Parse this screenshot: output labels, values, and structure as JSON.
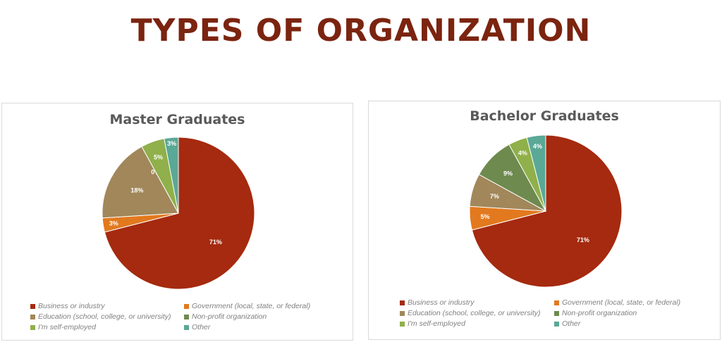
{
  "page": {
    "title": "TYPES OF ORGANIZATION"
  },
  "colors": {
    "Business or industry": "#a52a0f",
    "Government (local, state, or federal)": "#e2791e",
    "Education (school, college, or university)": "#a1875a",
    "Non-profit organization": "#6e8a4e",
    "I'm self-employed": "#8fb04a",
    "Other": "#5aa896"
  },
  "chart_data": [
    {
      "type": "pie",
      "title": "Master Graduates",
      "categories": [
        "Business or industry",
        "Government (local, state, or federal)",
        "Education (school, college, or university)",
        "Non-profit organization",
        "I'm self-employed",
        "Other"
      ],
      "values": [
        71,
        3,
        18,
        0,
        5,
        3
      ],
      "data_labels": [
        "71%",
        "3%",
        "18%",
        "0%",
        "5%",
        "3%"
      ],
      "legend_position": "bottom"
    },
    {
      "type": "pie",
      "title": "Bachelor Graduates",
      "categories": [
        "Business or industry",
        "Government (local, state, or federal)",
        "Education (school, college, or university)",
        "Non-profit organization",
        "I'm self-employed",
        "Other"
      ],
      "values": [
        71,
        5,
        7,
        9,
        4,
        4
      ],
      "data_labels": [
        "71%",
        "5%",
        "7%",
        "9%",
        "4%",
        "4%"
      ],
      "legend_position": "bottom"
    }
  ]
}
